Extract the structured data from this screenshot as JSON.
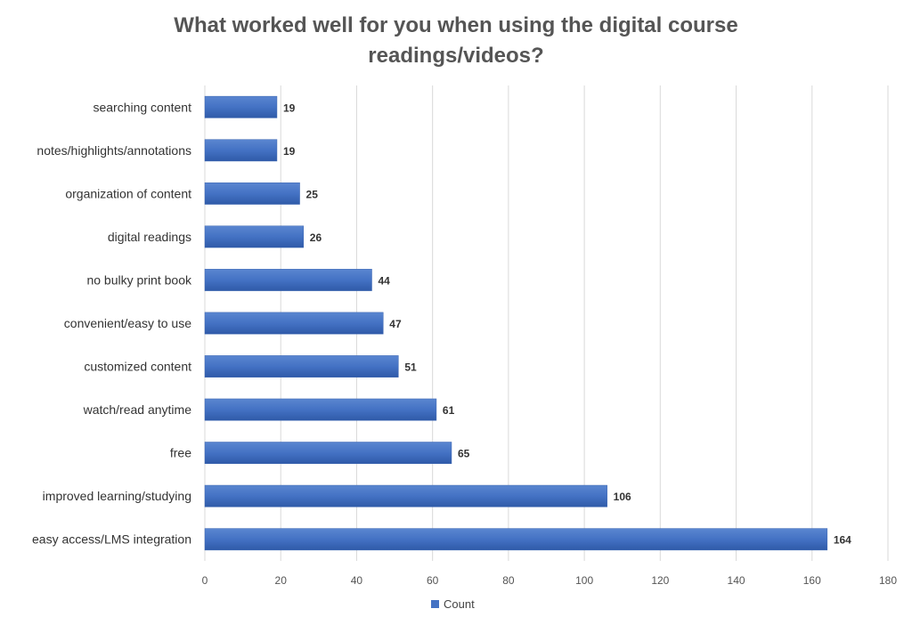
{
  "chart_data": {
    "type": "bar",
    "orientation": "horizontal",
    "title_line1": "What worked well for you when using the digital course",
    "title_line2": "readings/videos?",
    "categories": [
      "searching content",
      "notes/highlights/annotations",
      "organization of content",
      "digital readings",
      "no bulky print book",
      "convenient/easy to use",
      "customized content",
      "watch/read anytime",
      "free",
      "improved learning/studying",
      "easy access/LMS integration"
    ],
    "series": [
      {
        "name": "Count",
        "values": [
          19,
          19,
          25,
          26,
          44,
          47,
          51,
          61,
          65,
          106,
          164
        ]
      }
    ],
    "xlim": [
      0,
      180
    ],
    "xticks": [
      0,
      20,
      40,
      60,
      80,
      100,
      120,
      140,
      160,
      180
    ],
    "grid": true,
    "legend_position": "bottom",
    "bar_color": "#4472C4"
  }
}
